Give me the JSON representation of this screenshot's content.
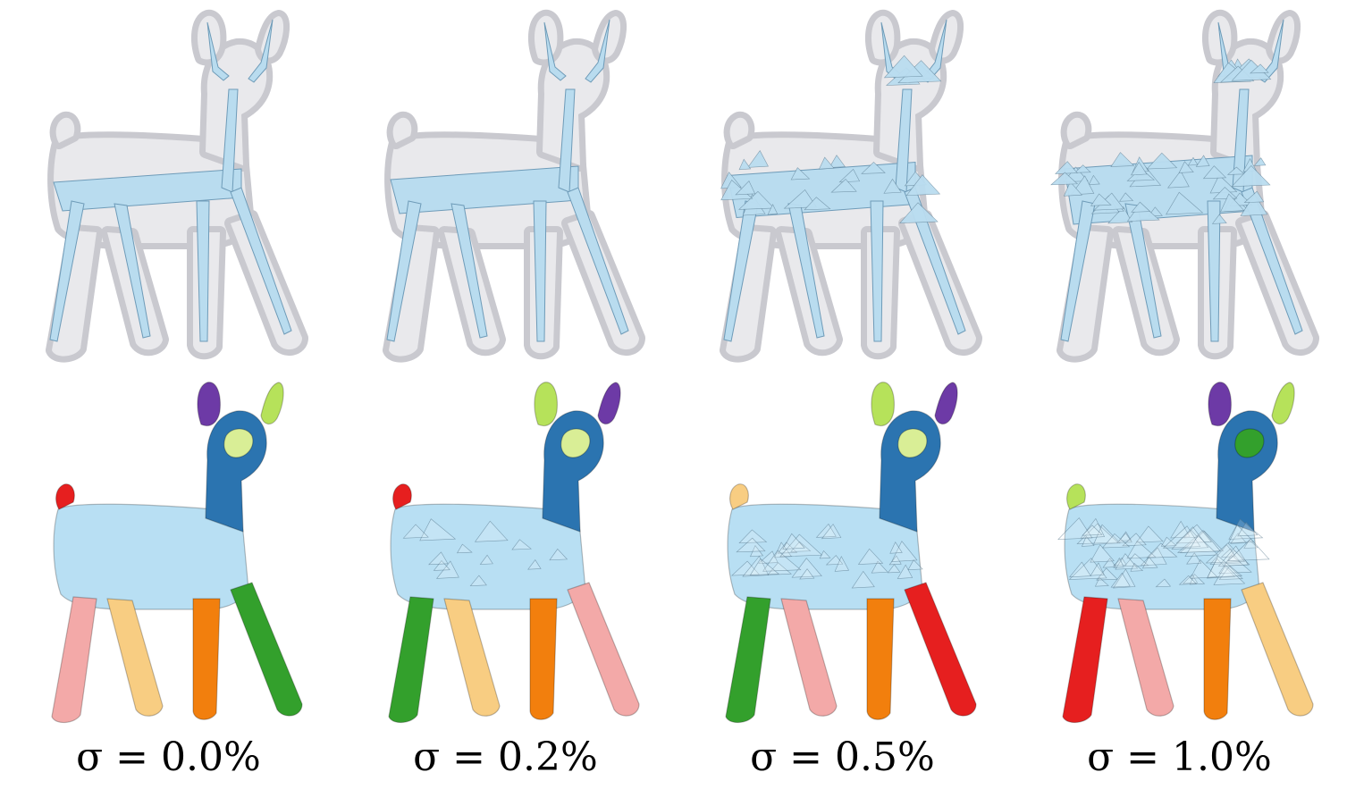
{
  "panels": [
    {
      "sigma_label": "σ = 0.0%",
      "noise": 0.0,
      "segment_colors": [
        "#b8dff3",
        "#2b74b0",
        "#6d3aa6",
        "#b6e25a",
        "#e61f1f",
        "#f3a9a8",
        "#f8cd82",
        "#f27f0d",
        "#33a02c",
        "#d9ee96"
      ]
    },
    {
      "sigma_label": "σ = 0.2%",
      "noise": 0.2,
      "segment_colors": [
        "#b8dff3",
        "#2b74b0",
        "#b6e25a",
        "#6d3aa6",
        "#e61f1f",
        "#33a02c",
        "#f8cd82",
        "#f27f0d",
        "#f3a9a8",
        "#d9ee96"
      ]
    },
    {
      "sigma_label": "σ = 0.5%",
      "noise": 0.5,
      "segment_colors": [
        "#b8dff3",
        "#2b74b0",
        "#b6e25a",
        "#6d3aa6",
        "#f8cd82",
        "#33a02c",
        "#f3a9a8",
        "#f27f0d",
        "#e61f1f",
        "#d9ee96"
      ]
    },
    {
      "sigma_label": "σ = 1.0%",
      "noise": 1.0,
      "segment_colors": [
        "#b8dff3",
        "#2b74b0",
        "#6d3aa6",
        "#b6e25a",
        "#b6e25a",
        "#e61f1f",
        "#f3a9a8",
        "#f27f0d",
        "#f8cd82",
        "#33a02c"
      ]
    }
  ],
  "colors": {
    "skeleton_fill": "#b9dcef",
    "skeleton_stroke": "#6e9bb8",
    "hull_fill": "#e9e9ec",
    "hull_stroke": "#c9c9cf"
  }
}
